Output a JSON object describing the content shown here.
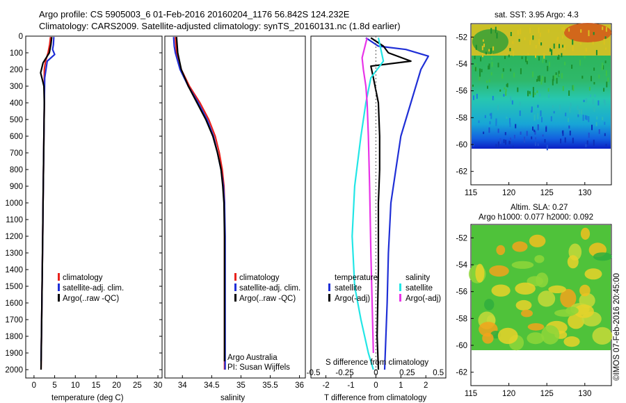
{
  "header": {
    "line1": "Argo profile: CS 5905003_6 01-Feb-2016 20160204_1176 56.842S 124.232E",
    "line2": "Climatology: CARS2009. Satellite-adjusted climatology: synTS_20160131.nc (1.8d earlier)"
  },
  "colors": {
    "climatology": "#e8221c",
    "satellite": "#1f2fd6",
    "argo": "#000000",
    "sal_satellite": "#22e6e6",
    "sal_argo": "#e833e8"
  },
  "depth_ticks": [
    "0",
    "100",
    "200",
    "300",
    "400",
    "500",
    "600",
    "700",
    "800",
    "900",
    "1000",
    "1100",
    "1200",
    "1300",
    "1400",
    "1500",
    "1600",
    "1700",
    "1800",
    "1900",
    "2000"
  ],
  "panel1": {
    "xlabel": "temperature (deg C)",
    "xticks": [
      "0",
      "5",
      "10",
      "15",
      "20",
      "25",
      "30"
    ],
    "legend": [
      "climatology",
      "satellite-adj. clim.",
      "Argo(..raw -QC)"
    ]
  },
  "panel2": {
    "xlabel": "salinity",
    "xticks": [
      "34",
      "34.5",
      "35",
      "35.5",
      "36"
    ],
    "legend": [
      "climatology",
      "satellite-adj. clim.",
      "Argo(..raw -QC)"
    ],
    "note1": "Argo Australia",
    "note2": "PI: Susan Wijffels"
  },
  "panel3": {
    "xlabel": "T difference from climatology",
    "top_label": "S difference from climatology",
    "xticks": [
      "-2",
      "-1",
      "0",
      "1",
      "2"
    ],
    "sticks": [
      "-0.5",
      "-0.25",
      "0",
      "0.25",
      "0.5"
    ],
    "temp_head": "temperature",
    "sal_head": "salinity",
    "temp_items": [
      "satellite",
      "Argo(-adj)"
    ],
    "sal_items": [
      "satellite",
      "Argo(-adj)"
    ]
  },
  "map1": {
    "title": "sat. SST: 3.95 Argo: 4.3",
    "yticks": [
      "-52",
      "-54",
      "-56",
      "-58",
      "-60",
      "-62"
    ],
    "xticks": [
      "115",
      "120",
      "125",
      "130"
    ]
  },
  "map2": {
    "title1": "Altim. SLA: 0.27",
    "title2": "Argo h1000: 0.077 h2000: 0.092",
    "yticks": [
      "-52",
      "-54",
      "-56",
      "-58",
      "-60",
      "-62"
    ],
    "xticks": [
      "115",
      "120",
      "125",
      "130"
    ]
  },
  "credit": "©IMOS 07-Feb-2016 20:45:00",
  "chart_data": [
    {
      "type": "line",
      "title": "",
      "xlabel": "temperature (deg C)",
      "ylabel": "",
      "xlim": [
        -2,
        31
      ],
      "ylim": [
        2050,
        0
      ],
      "series": [
        {
          "name": "climatology",
          "x": [
            4.0,
            3.8,
            3.4,
            2.8,
            2.5,
            2.5,
            2.5,
            2.4,
            2.3,
            2.2,
            2.1,
            2.0,
            1.9,
            1.8,
            1.7
          ],
          "y": [
            5,
            50,
            100,
            150,
            200,
            300,
            400,
            600,
            800,
            1000,
            1200,
            1400,
            1600,
            1800,
            2000
          ]
        },
        {
          "name": "satellite-adj. clim.",
          "x": [
            4.8,
            4.7,
            4.5,
            5.0,
            3.2,
            2.6,
            2.5,
            2.4,
            2.3,
            2.2,
            2.1,
            2.0,
            1.9,
            1.8,
            1.7
          ],
          "y": [
            5,
            50,
            80,
            110,
            150,
            250,
            400,
            600,
            800,
            1000,
            1200,
            1400,
            1600,
            1800,
            1950
          ]
        },
        {
          "name": "Argo(..raw -QC)",
          "x": [
            4.3,
            4.1,
            3.7,
            2.2,
            1.6,
            2.0,
            2.4,
            2.5,
            2.4,
            2.3,
            2.2,
            2.1,
            2.0,
            1.9,
            1.8,
            1.7
          ],
          "y": [
            5,
            50,
            100,
            160,
            220,
            260,
            300,
            400,
            600,
            800,
            1000,
            1200,
            1400,
            1600,
            1800,
            2000
          ]
        }
      ]
    },
    {
      "type": "line",
      "title": "",
      "xlabel": "salinity",
      "ylabel": "",
      "xlim": [
        33.7,
        36.1
      ],
      "ylim": [
        2050,
        0
      ],
      "series": [
        {
          "name": "climatology",
          "x": [
            33.88,
            33.9,
            33.98,
            34.12,
            34.3,
            34.45,
            34.56,
            34.63,
            34.68,
            34.71,
            34.72,
            34.72,
            34.72,
            34.72
          ],
          "y": [
            5,
            100,
            200,
            300,
            400,
            500,
            600,
            700,
            800,
            900,
            1000,
            1200,
            1600,
            2000
          ]
        },
        {
          "name": "satellite-adj. clim.",
          "x": [
            33.85,
            33.86,
            33.88,
            33.96,
            34.1,
            34.27,
            34.42,
            34.53,
            34.6,
            34.66,
            34.7,
            34.72,
            34.73,
            34.73
          ],
          "y": [
            5,
            60,
            100,
            200,
            300,
            400,
            500,
            600,
            700,
            800,
            900,
            1000,
            1200,
            2000
          ]
        },
        {
          "name": "Argo(..raw -QC)",
          "x": [
            33.9,
            33.92,
            33.98,
            34.1,
            34.25,
            34.4,
            34.52,
            34.6,
            34.66,
            34.69,
            34.71,
            34.72,
            34.72
          ],
          "y": [
            5,
            100,
            200,
            300,
            400,
            500,
            600,
            700,
            800,
            900,
            1000,
            1200,
            1950
          ]
        }
      ]
    },
    {
      "type": "line",
      "title": "",
      "xlabel": "T difference from climatology",
      "ylabel": "",
      "xlim": [
        -2.6,
        2.8
      ],
      "ylim": [
        2050,
        0
      ],
      "series": [
        {
          "name": "temperature satellite",
          "x": [
            -0.4,
            0.1,
            1.2,
            2.1,
            1.8,
            1.4,
            1.2,
            1.0,
            0.8,
            0.6,
            0.5,
            0.45,
            0.4,
            0.35
          ],
          "y": [
            10,
            60,
            80,
            120,
            200,
            400,
            500,
            600,
            800,
            1000,
            1300,
            1600,
            1800,
            2000
          ]
        },
        {
          "name": "temperature Argo(-adj)",
          "x": [
            -0.2,
            0.3,
            0.5,
            1.4,
            -0.2,
            -0.1,
            0.1,
            0.15,
            0.15,
            0.1,
            0.1,
            0.05,
            0.1
          ],
          "y": [
            10,
            60,
            100,
            150,
            180,
            250,
            400,
            600,
            800,
            1000,
            1400,
            1800,
            2000
          ]
        },
        {
          "name": "salinity satellite",
          "x": [
            0.02,
            0.06,
            -0.04,
            -0.08,
            -0.12,
            -0.17,
            -0.19,
            -0.17,
            -0.12,
            -0.06,
            -0.02
          ],
          "y": [
            10,
            150,
            250,
            400,
            600,
            900,
            1200,
            1500,
            1700,
            1900,
            2000
          ]
        },
        {
          "name": "salinity Argo(-adj)",
          "x": [
            -0.07,
            -0.11,
            -0.1,
            -0.08,
            -0.07,
            -0.06,
            -0.05,
            -0.04,
            -0.02
          ],
          "y": [
            10,
            130,
            200,
            300,
            400,
            600,
            900,
            1300,
            1900
          ]
        }
      ]
    }
  ]
}
